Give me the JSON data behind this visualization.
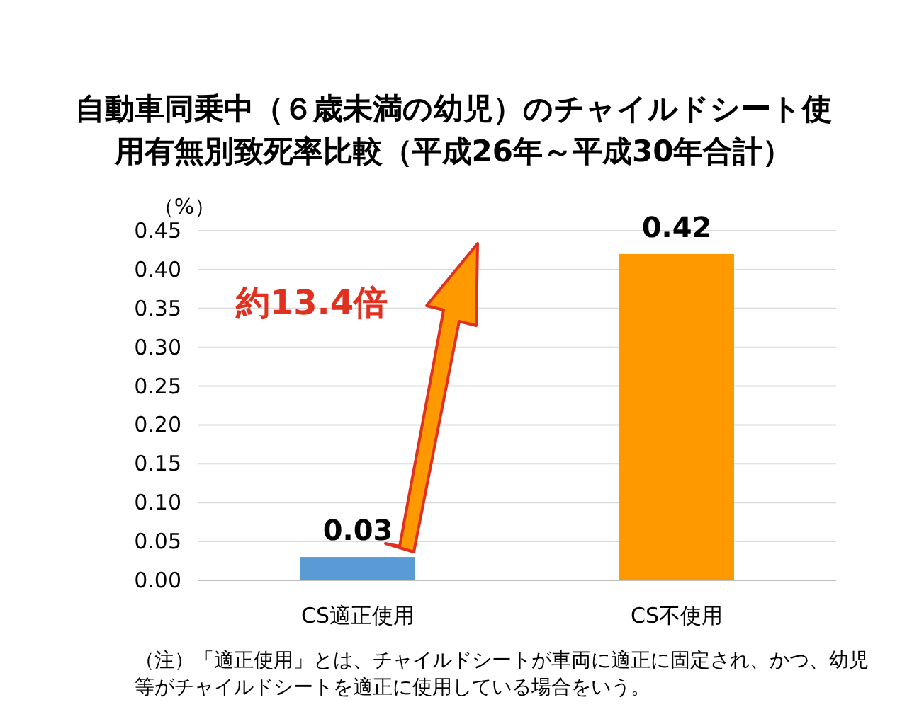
{
  "chart_data": {
    "type": "bar",
    "title": "自動車同乗中（６歳未満の幼児）のチャイルドシート使用有無別致死率比較（平成26年～平成30年合計）",
    "ylabel": "（%）",
    "categories": [
      "CS適正使用",
      "CS不使用"
    ],
    "values": [
      0.03,
      0.42
    ],
    "colors": [
      "#5b9bd5",
      "#ff9900"
    ],
    "value_labels": [
      "0.03",
      "0.42"
    ],
    "ylim": [
      0,
      0.45
    ],
    "yticks": [
      {
        "value": 0,
        "label": "0.00"
      },
      {
        "value": 0.05,
        "label": "0.05"
      },
      {
        "value": 0.1,
        "label": "0.10"
      },
      {
        "value": 0.15,
        "label": "0.15"
      },
      {
        "value": 0.2,
        "label": "0.20"
      },
      {
        "value": 0.25,
        "label": "0.25"
      },
      {
        "value": 0.3,
        "label": "0.30"
      },
      {
        "value": 0.35,
        "label": "0.35"
      },
      {
        "value": 0.4,
        "label": "0.40"
      },
      {
        "value": 0.45,
        "label": "0.45"
      }
    ],
    "grid": "y",
    "annotations": [
      "約13.4倍",
      "（注）「適正使用」とは、チャイルドシートが車両に適正に固定され、かつ、幼児等がチャイルドシートを適正に使用している場合をいう。"
    ]
  }
}
